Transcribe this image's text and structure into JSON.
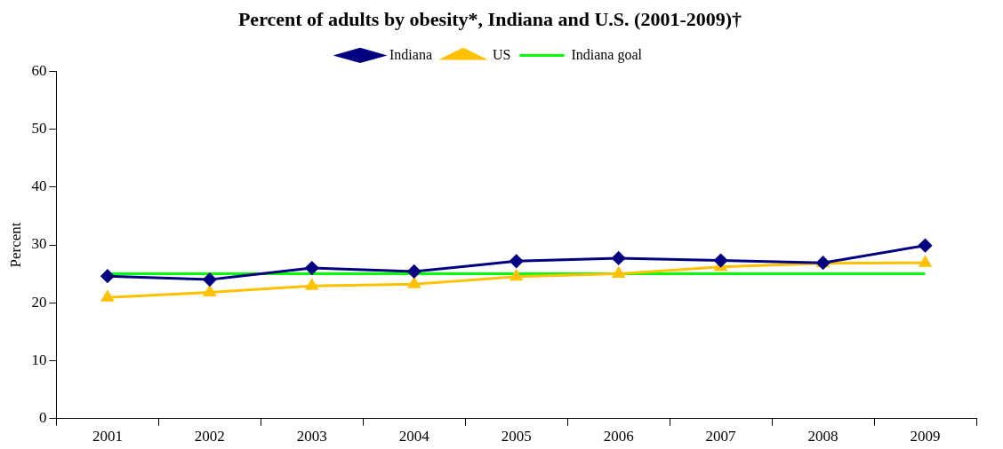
{
  "chart_data": {
    "type": "line",
    "title": "Percent of adults by obesity*, Indiana and U.S. (2001-2009)†",
    "ylabel": "Percent",
    "categories": [
      "2001",
      "2002",
      "2003",
      "2004",
      "2005",
      "2006",
      "2007",
      "2008",
      "2009"
    ],
    "series": [
      {
        "name": "Indiana",
        "color": "#000080",
        "marker": "diamond",
        "values": [
          24.6,
          24.0,
          26.0,
          25.4,
          27.2,
          27.7,
          27.3,
          26.9,
          29.9
        ]
      },
      {
        "name": "US",
        "color": "#ffc000",
        "marker": "triangle",
        "values": [
          20.9,
          21.8,
          22.9,
          23.2,
          24.5,
          25.0,
          26.2,
          26.8,
          26.9
        ]
      },
      {
        "name": "Indiana goal",
        "color": "#00ff00",
        "marker": "none",
        "values": [
          25,
          25,
          25,
          25,
          25,
          25,
          25,
          25,
          25
        ]
      }
    ],
    "ylim": [
      0,
      60
    ],
    "yticks": [
      0,
      10,
      20,
      30,
      40,
      50,
      60
    ],
    "grid": false,
    "legend": "top",
    "line_style": "solid"
  }
}
